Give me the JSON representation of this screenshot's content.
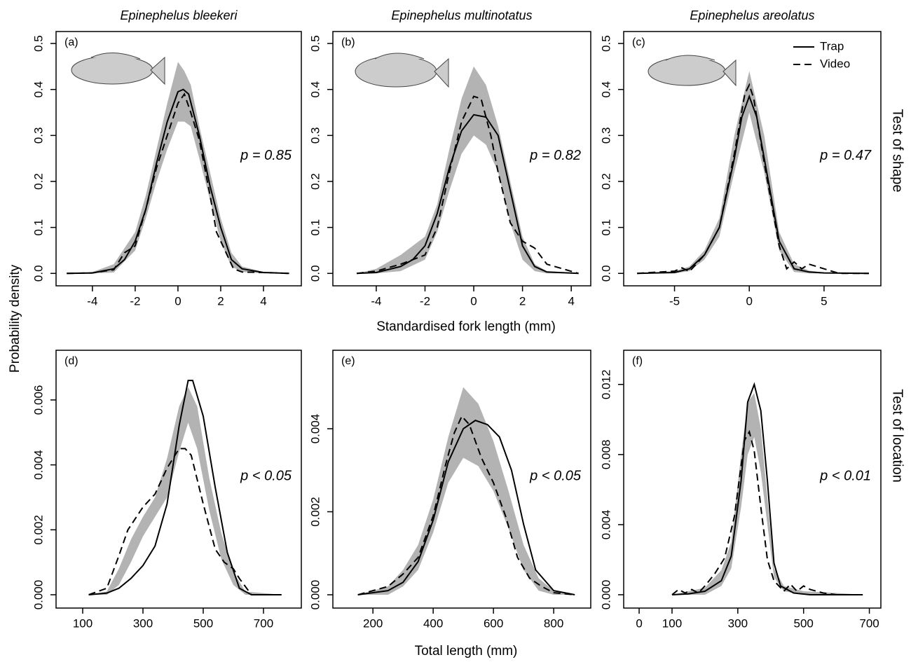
{
  "shared": {
    "ylabel": "Probability density",
    "xlabel_shape": "Standardised fork length (mm)",
    "xlabel_location": "Total length (mm)",
    "row_labels": [
      "Test of shape",
      "Test of location"
    ]
  },
  "chart_data": [
    {
      "type": "line",
      "title": "Epinephelus bleekeri",
      "panel": "(a)",
      "annotation": "p = 0.85",
      "xlim": [
        -5.7,
        5.77
      ],
      "ylim": [
        -0.027,
        0.526
      ],
      "xticks": [
        -4,
        -2,
        0,
        2,
        4
      ],
      "yticks": [
        {
          "value": 0,
          "label": "0.0"
        },
        0.1,
        0.2,
        0.3,
        0.4,
        0.5
      ],
      "band": {
        "color": "#b3b3b3",
        "x": [
          -5.2,
          -4,
          -3,
          -2,
          -1.5,
          -1,
          -0.5,
          0,
          0.3,
          0.6,
          1,
          1.5,
          2,
          2.5,
          3,
          4,
          5.2
        ],
        "lower": [
          0,
          0,
          0.002,
          0.05,
          0.12,
          0.2,
          0.27,
          0.33,
          0.33,
          0.32,
          0.25,
          0.16,
          0.07,
          0.015,
          0.003,
          0,
          0
        ],
        "upper": [
          0,
          0.003,
          0.02,
          0.09,
          0.17,
          0.27,
          0.37,
          0.46,
          0.44,
          0.41,
          0.32,
          0.22,
          0.12,
          0.045,
          0.015,
          0.003,
          0
        ]
      },
      "series": [
        {
          "name": "Trap",
          "color": "#000000",
          "dash": false,
          "x": [
            -5.2,
            -4,
            -3,
            -2.5,
            -2,
            -1.5,
            -1,
            -0.5,
            0,
            0.25,
            0.5,
            1,
            1.5,
            2,
            2.5,
            3,
            4,
            5.2
          ],
          "values": [
            0,
            0.001,
            0.01,
            0.03,
            0.07,
            0.14,
            0.24,
            0.33,
            0.395,
            0.4,
            0.39,
            0.3,
            0.19,
            0.1,
            0.03,
            0.01,
            0.002,
            0
          ]
        },
        {
          "name": "Video",
          "color": "#000000",
          "dash": true,
          "x": [
            -5.2,
            -4,
            -3,
            -2.5,
            -2,
            -1.5,
            -1,
            -0.5,
            0,
            0.3,
            0.6,
            1,
            1.5,
            1.8,
            2.2,
            2.6,
            3,
            4,
            5.2
          ],
          "values": [
            0,
            0.001,
            0.008,
            0.045,
            0.06,
            0.14,
            0.23,
            0.3,
            0.37,
            0.39,
            0.35,
            0.29,
            0.17,
            0.09,
            0.05,
            0.01,
            0.003,
            0.002,
            0
          ]
        }
      ]
    },
    {
      "type": "line",
      "title": "Epinephelus multinotatus",
      "panel": "(b)",
      "annotation": "p = 0.82",
      "xlim": [
        -5.78,
        4.8
      ],
      "ylim": [
        -0.027,
        0.526
      ],
      "xticks": [
        -4,
        -2,
        0,
        2,
        4
      ],
      "yticks": [
        {
          "value": 0,
          "label": "0.0"
        },
        0.1,
        0.2,
        0.3,
        0.4,
        0.5
      ],
      "band": {
        "color": "#b3b3b3",
        "x": [
          -4.8,
          -4,
          -3,
          -2,
          -1.5,
          -1,
          -0.5,
          0,
          0.5,
          1,
          1.5,
          2,
          2.5,
          3,
          4.3
        ],
        "lower": [
          0,
          0,
          0.005,
          0.03,
          0.09,
          0.18,
          0.26,
          0.3,
          0.28,
          0.22,
          0.11,
          0.03,
          0.005,
          0,
          0
        ],
        "upper": [
          0,
          0.01,
          0.04,
          0.08,
          0.15,
          0.27,
          0.38,
          0.45,
          0.41,
          0.32,
          0.2,
          0.08,
          0.02,
          0.005,
          0
        ]
      },
      "series": [
        {
          "name": "Trap",
          "color": "#000000",
          "dash": false,
          "x": [
            -4.8,
            -4,
            -3,
            -2.5,
            -2,
            -1.5,
            -1,
            -0.5,
            0,
            0.5,
            1,
            1.5,
            2,
            2.5,
            3,
            4.3
          ],
          "values": [
            0,
            0.002,
            0.015,
            0.03,
            0.06,
            0.13,
            0.23,
            0.31,
            0.345,
            0.34,
            0.3,
            0.18,
            0.06,
            0.015,
            0.003,
            0
          ]
        },
        {
          "name": "Video",
          "color": "#000000",
          "dash": true,
          "x": [
            -4.8,
            -4,
            -3,
            -2,
            -1.5,
            -1,
            -0.5,
            0,
            0.3,
            0.7,
            1,
            1.5,
            2,
            2.5,
            3,
            4.3
          ],
          "values": [
            0,
            0.005,
            0.02,
            0.04,
            0.1,
            0.22,
            0.33,
            0.385,
            0.38,
            0.3,
            0.22,
            0.11,
            0.07,
            0.055,
            0.02,
            0
          ]
        }
      ]
    },
    {
      "type": "line",
      "title": "Epinephelus areolatus",
      "panel": "(c)",
      "annotation": "p = 0.47",
      "legend": "upper right",
      "xlim": [
        -8.4,
        8.8
      ],
      "ylim": [
        -0.027,
        0.526
      ],
      "xticks": [
        -5,
        0,
        5
      ],
      "yticks": [
        {
          "value": 0,
          "label": "0.0"
        },
        0.1,
        0.2,
        0.3,
        0.4,
        0.5
      ],
      "band": {
        "color": "#b3b3b3",
        "x": [
          -7.5,
          -5,
          -4,
          -3,
          -2,
          -1,
          0,
          1,
          2,
          3,
          4,
          5,
          8
        ],
        "lower": [
          0,
          0,
          0.005,
          0.03,
          0.08,
          0.22,
          0.35,
          0.22,
          0.05,
          0.003,
          0,
          0,
          0
        ],
        "upper": [
          0,
          0.005,
          0.015,
          0.05,
          0.12,
          0.3,
          0.44,
          0.3,
          0.09,
          0.02,
          0.006,
          0.002,
          0
        ]
      },
      "series": [
        {
          "name": "Trap",
          "color": "#000000",
          "dash": false,
          "x": [
            -7.5,
            -5,
            -4,
            -3,
            -2,
            -1,
            -0.5,
            0,
            0.5,
            1,
            2,
            3,
            4,
            5,
            8
          ],
          "values": [
            0,
            0.002,
            0.01,
            0.04,
            0.1,
            0.25,
            0.34,
            0.385,
            0.34,
            0.25,
            0.07,
            0.01,
            0.003,
            0.001,
            0
          ]
        },
        {
          "name": "Video",
          "color": "#000000",
          "dash": true,
          "x": [
            -7.5,
            -5,
            -4.5,
            -4,
            -3,
            -2,
            -1,
            -0.3,
            0,
            0.3,
            1,
            2,
            2.5,
            3,
            3.5,
            4,
            5,
            6,
            8
          ],
          "values": [
            0,
            0.005,
            0.012,
            0.004,
            0.04,
            0.1,
            0.26,
            0.39,
            0.41,
            0.38,
            0.24,
            0.06,
            0.01,
            0.025,
            0.01,
            0.02,
            0.01,
            0,
            0
          ]
        }
      ]
    },
    {
      "type": "line",
      "panel": "(d)",
      "annotation": "p < 0.05",
      "xlim": [
        11.6,
        825.6
      ],
      "ylim": [
        -0.00041,
        0.00753
      ],
      "xticks": [
        100,
        300,
        500,
        700
      ],
      "yticks": [
        {
          "value": 0,
          "label": "0.000"
        },
        0.002,
        0.004,
        0.006
      ],
      "band": {
        "color": "#b3b3b3",
        "x": [
          120,
          180,
          220,
          260,
          300,
          340,
          380,
          420,
          450,
          480,
          520,
          560,
          600,
          640,
          760
        ],
        "lower": [
          0,
          0,
          0.0003,
          0.001,
          0.0018,
          0.0024,
          0.003,
          0.0044,
          0.0053,
          0.0045,
          0.0026,
          0.0011,
          0.0003,
          0,
          0
        ],
        "upper": [
          0,
          0.0001,
          0.0008,
          0.0017,
          0.0024,
          0.003,
          0.0042,
          0.0058,
          0.0064,
          0.0058,
          0.0036,
          0.0019,
          0.0007,
          0.0001,
          0
        ]
      },
      "series": [
        {
          "name": "Trap",
          "color": "#000000",
          "dash": false,
          "x": [
            120,
            180,
            220,
            260,
            300,
            340,
            380,
            420,
            450,
            465,
            500,
            540,
            580,
            620,
            660,
            760
          ],
          "values": [
            0,
            5e-05,
            0.0002,
            0.0005,
            0.0009,
            0.0015,
            0.0028,
            0.0052,
            0.0066,
            0.0066,
            0.0055,
            0.0033,
            0.0013,
            0.0002,
            0,
            0
          ]
        },
        {
          "name": "Video",
          "color": "#000000",
          "dash": true,
          "x": [
            120,
            180,
            220,
            250,
            300,
            340,
            380,
            420,
            440,
            460,
            500,
            540,
            570,
            600,
            620,
            660,
            760
          ],
          "values": [
            0,
            0.0002,
            0.0012,
            0.002,
            0.0027,
            0.0031,
            0.0039,
            0.0045,
            0.0045,
            0.0043,
            0.0028,
            0.0014,
            0.001,
            0.0008,
            0.0005,
            0,
            0
          ]
        }
      ]
    },
    {
      "type": "line",
      "panel": "(e)",
      "annotation": "p < 0.05",
      "xlim": [
        67,
        923
      ],
      "ylim": [
        -0.00032,
        0.00589
      ],
      "xticks": [
        200,
        400,
        600,
        800
      ],
      "yticks": [
        {
          "value": 0,
          "label": "0.000"
        },
        0.002,
        0.004
      ],
      "band": {
        "color": "#b3b3b3",
        "x": [
          150,
          250,
          300,
          350,
          400,
          450,
          500,
          550,
          600,
          650,
          700,
          750,
          800,
          870
        ],
        "lower": [
          0,
          0,
          0.0002,
          0.0006,
          0.0015,
          0.0027,
          0.0033,
          0.0031,
          0.0025,
          0.0016,
          0.0006,
          0.0001,
          0,
          0
        ],
        "upper": [
          0,
          0.0002,
          0.0006,
          0.0012,
          0.0023,
          0.0038,
          0.005,
          0.0046,
          0.0037,
          0.0025,
          0.0012,
          0.0004,
          0.0001,
          0
        ]
      },
      "series": [
        {
          "name": "Trap",
          "color": "#000000",
          "dash": false,
          "x": [
            150,
            250,
            300,
            350,
            400,
            450,
            500,
            540,
            580,
            620,
            660,
            700,
            740,
            800,
            870
          ],
          "values": [
            0,
            0.0001,
            0.0003,
            0.0008,
            0.0018,
            0.0032,
            0.004,
            0.0042,
            0.0041,
            0.0038,
            0.003,
            0.0017,
            0.0006,
            0.0001,
            0
          ]
        },
        {
          "name": "Video",
          "color": "#000000",
          "dash": true,
          "x": [
            150,
            250,
            300,
            350,
            400,
            440,
            470,
            495,
            520,
            560,
            600,
            640,
            680,
            720,
            760,
            800,
            870
          ],
          "values": [
            0,
            0.0002,
            0.0005,
            0.0009,
            0.0019,
            0.0031,
            0.0039,
            0.0043,
            0.0041,
            0.0033,
            0.0027,
            0.0019,
            0.0009,
            0.0004,
            0.0002,
            5e-05,
            0
          ]
        }
      ]
    },
    {
      "type": "line",
      "panel": "(f)",
      "annotation": "p < 0.01",
      "xlim": [
        -47,
        735
      ],
      "ylim": [
        -0.00076,
        0.01395
      ],
      "xticks": [
        0,
        100,
        300,
        500,
        700
      ],
      "yticks": [
        {
          "value": 0,
          "label": "0.000"
        },
        0.004,
        0.008,
        0.012
      ],
      "band": {
        "color": "#b3b3b3",
        "x": [
          100,
          200,
          250,
          280,
          310,
          330,
          350,
          370,
          390,
          410,
          440,
          500,
          600,
          680
        ],
        "lower": [
          0,
          0,
          0.0005,
          0.0015,
          0.005,
          0.008,
          0.009,
          0.007,
          0.004,
          0.001,
          0.0002,
          0,
          0,
          0
        ],
        "upper": [
          0,
          0.0004,
          0.0014,
          0.003,
          0.008,
          0.011,
          0.0115,
          0.0095,
          0.0055,
          0.0015,
          0.0005,
          0.0002,
          0.0001,
          0
        ]
      },
      "series": [
        {
          "name": "Trap",
          "color": "#000000",
          "dash": false,
          "x": [
            100,
            150,
            200,
            250,
            280,
            310,
            330,
            350,
            370,
            390,
            410,
            430,
            470,
            520,
            580,
            680
          ],
          "values": [
            0,
            5e-05,
            0.0002,
            0.0008,
            0.0022,
            0.0065,
            0.011,
            0.012,
            0.0105,
            0.0065,
            0.0018,
            0.0005,
            0.0001,
            0,
            0,
            0
          ]
        },
        {
          "name": "Video",
          "color": "#000000",
          "dash": true,
          "x": [
            100,
            120,
            140,
            160,
            180,
            200,
            230,
            260,
            290,
            320,
            335,
            350,
            370,
            390,
            410,
            440,
            460,
            480,
            500,
            520,
            560,
            600,
            680
          ],
          "values": [
            0,
            0.0003,
            0.0001,
            0.0003,
            0.0001,
            0.0005,
            0.0012,
            0.0021,
            0.0045,
            0.0088,
            0.0093,
            0.0082,
            0.005,
            0.002,
            0.0008,
            0.0002,
            0.0006,
            0.0002,
            0.0005,
            0.0003,
            0.0001,
            0,
            0
          ]
        }
      ]
    }
  ]
}
